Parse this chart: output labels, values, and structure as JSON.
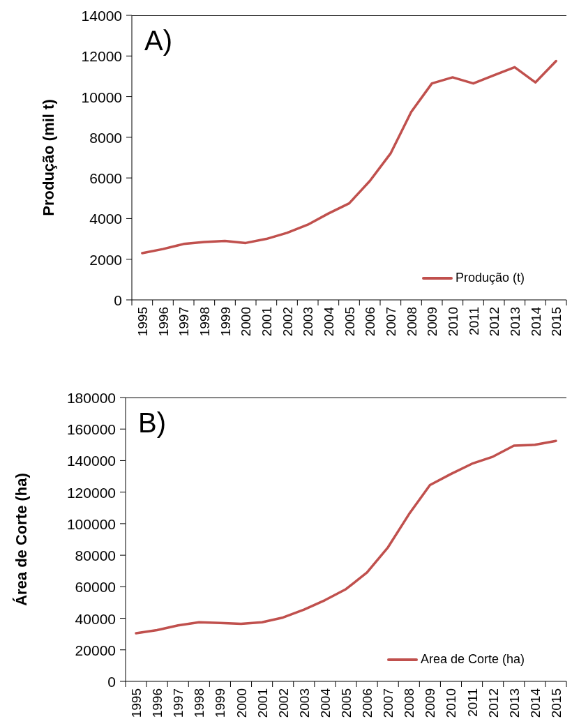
{
  "chart_data": [
    {
      "type": "line",
      "title": "A)",
      "ylabel": "Produção (mil t)",
      "categories": [
        "1995",
        "1996",
        "1997",
        "1998",
        "1999",
        "2000",
        "2001",
        "2002",
        "2003",
        "2004",
        "2005",
        "2006",
        "2007",
        "2008",
        "2009",
        "2010",
        "2011",
        "2012",
        "2013",
        "2014",
        "2015"
      ],
      "series": [
        {
          "name": "Produção (t)",
          "color": "#c0504d",
          "values": [
            2300,
            2500,
            2750,
            2850,
            2900,
            2800,
            3000,
            3300,
            3700,
            4250,
            4750,
            5850,
            7200,
            9250,
            10650,
            10950,
            10650,
            11050,
            11450,
            10700,
            11750
          ]
        }
      ],
      "ylim": [
        0,
        14000
      ],
      "yticks": [
        0,
        2000,
        4000,
        6000,
        8000,
        10000,
        12000,
        14000
      ],
      "legend": "bottom right"
    },
    {
      "type": "line",
      "title": "B)",
      "ylabel": "Área de Corte (ha)",
      "categories": [
        "1995",
        "1996",
        "1997",
        "1998",
        "1999",
        "2000",
        "2001",
        "2002",
        "2003",
        "2004",
        "2005",
        "2006",
        "2007",
        "2008",
        "2009",
        "2010",
        "2011",
        "2012",
        "2013",
        "2014",
        "2015"
      ],
      "series": [
        {
          "name": "Area de Corte (ha)",
          "color": "#c0504d",
          "values": [
            30500,
            32500,
            35500,
            37500,
            37000,
            36500,
            37500,
            40500,
            45500,
            51500,
            58500,
            69000,
            85000,
            106000,
            124500,
            131500,
            138000,
            142500,
            149500,
            150000,
            152500
          ]
        }
      ],
      "ylim": [
        0,
        180000
      ],
      "yticks": [
        0,
        20000,
        40000,
        60000,
        80000,
        100000,
        120000,
        140000,
        160000,
        180000
      ],
      "legend": "bottom right"
    }
  ]
}
